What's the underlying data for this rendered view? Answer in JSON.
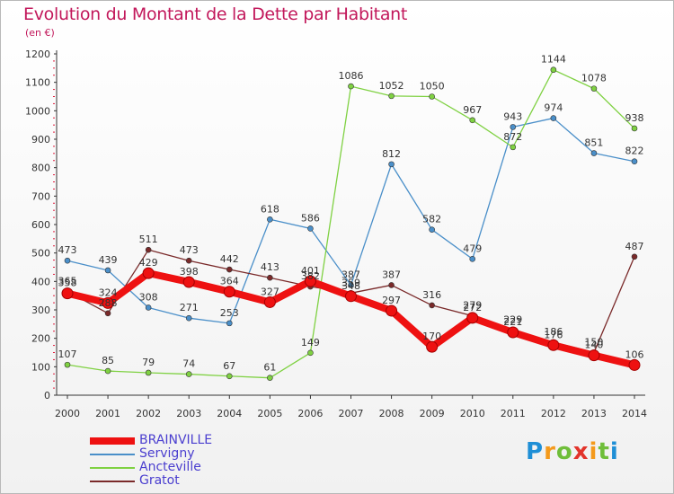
{
  "header": {
    "title": "Evolution du Montant de la Dette par Habitant",
    "unit": "(en €)"
  },
  "brand": {
    "text": "Proxiti",
    "colors": [
      "#1f8fd6",
      "#f49a1c",
      "#6fbe3a",
      "#e2342b"
    ]
  },
  "chart_data": {
    "type": "line",
    "title": "Evolution du Montant de la Dette par Habitant",
    "subtitle": "(en €)",
    "xlabel": "",
    "ylabel": "",
    "categories": [
      "2000",
      "2001",
      "2002",
      "2003",
      "2004",
      "2005",
      "2006",
      "2007",
      "2008",
      "2009",
      "2010",
      "2011",
      "2012",
      "2013",
      "2014"
    ],
    "ylim": [
      0,
      1200
    ],
    "yticks": [
      0,
      100,
      200,
      300,
      400,
      500,
      600,
      700,
      800,
      900,
      1000,
      1100,
      1200
    ],
    "grid": false,
    "legend_position": "bottom-left",
    "series": [
      {
        "name": "BRAINVILLE",
        "color": "#ee1111",
        "emphasis": true,
        "values": [
          358,
          324,
          429,
          398,
          364,
          327,
          401,
          348,
          297,
          170,
          272,
          221,
          176,
          140,
          106
        ],
        "labels": [
          "358",
          "324",
          "429",
          "398",
          "364",
          "327",
          "401",
          "348",
          "297",
          "170",
          "272",
          "221",
          "176",
          "140",
          "106"
        ]
      },
      {
        "name": "Servigny",
        "color": "#4a8fc9",
        "values": [
          473,
          439,
          308,
          271,
          253,
          618,
          586,
          387,
          812,
          582,
          479,
          943,
          974,
          851,
          822
        ],
        "labels": [
          "473",
          "439",
          "308",
          "271",
          "253",
          "618",
          "586",
          "387",
          "812",
          "582",
          "479",
          "943",
          "974",
          "851",
          "822"
        ]
      },
      {
        "name": "Ancteville",
        "color": "#7fd142",
        "values": [
          107,
          85,
          79,
          74,
          67,
          61,
          149,
          1086,
          1052,
          1050,
          967,
          872,
          1144,
          1078,
          938
        ],
        "labels": [
          "107",
          "85",
          "79",
          "74",
          "67",
          "61",
          "149",
          "1086",
          "1052",
          "1050",
          "967",
          "872",
          "1144",
          "1078",
          "938"
        ]
      },
      {
        "name": "Gratot",
        "color": "#7a2a2a",
        "values": [
          365,
          288,
          511,
          473,
          442,
          413,
          382,
          359,
          387,
          316,
          279,
          229,
          186,
          150,
          487
        ],
        "labels": [
          "365",
          "288",
          "511",
          "473",
          "442",
          "413",
          "382",
          "359",
          "387",
          "316",
          "279",
          "229",
          "186",
          "150",
          "487"
        ]
      }
    ]
  }
}
